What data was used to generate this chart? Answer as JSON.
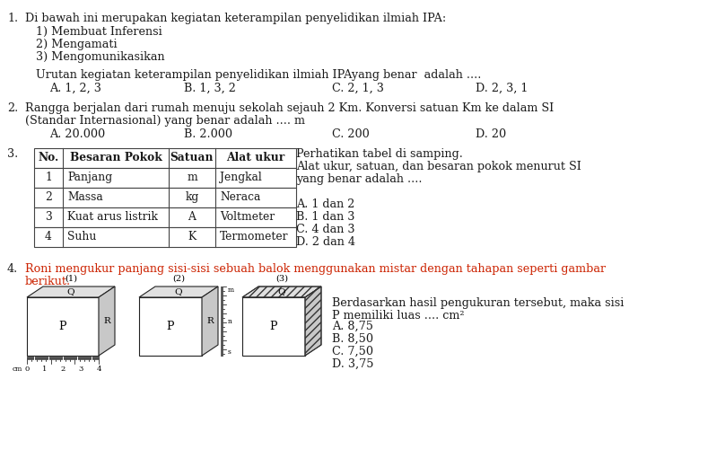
{
  "bg_color": "#ffffff",
  "text_color": "#1a1a1a",
  "red_color": "#cc2200",
  "fig_width": 8.08,
  "fig_height": 5.3,
  "dpi": 100,
  "content": {
    "q1_num": "1.",
    "q1_text": "Di bawah ini merupakan kegiatan keterampilan penyelidikan ilmiah IPA:",
    "q1_items": [
      "1) Membuat Inferensi",
      "2) Mengamati",
      "3) Mengomunikasikan"
    ],
    "q1_urutan": "Urutan kegiatan keterampilan penyelidikan ilmiah IPAyang benar  adalah ....",
    "q1_opts": [
      "A. 1, 2, 3",
      "B. 1, 3, 2",
      "C. 2, 1, 3",
      "D. 2, 3, 1"
    ],
    "q2_num": "2.",
    "q2_text": "Rangga berjalan dari rumah menuju sekolah sejauh 2 Km. Konversi satuan Km ke dalam SI",
    "q2_text2": "(Standar Internasional) yang benar adalah .... m",
    "q2_opts": [
      "A. 20.000",
      "B. 2.000",
      "C. 200",
      "D. 20"
    ],
    "q3_num": "3.",
    "q3_side_text": [
      "Perhatikan tabel di samping.",
      "Alat ukur, satuan, dan besaran pokok menurut SI",
      "yang benar adalah ....",
      "A. 1 dan 2",
      "B. 1 dan 3",
      "C. 4 dan 3",
      "D. 2 dan 4"
    ],
    "q3_table_headers": [
      "No.",
      "Besaran Pokok",
      "Satuan",
      "Alat ukur"
    ],
    "q3_table_rows": [
      [
        "1",
        "Panjang",
        "m",
        "Jengkal"
      ],
      [
        "2",
        "Massa",
        "kg",
        "Neraca"
      ],
      [
        "3",
        "Kuat arus listrik",
        "A",
        "Voltmeter"
      ],
      [
        "4",
        "Suhu",
        "K",
        "Termometer"
      ]
    ],
    "q4_num": "4.",
    "q4_text": "Roni mengukur panjang sisi-sisi sebuah balok menggunakan mistar dengan tahapan seperti gambar",
    "q4_text2": "berikut.",
    "q4_side_text": [
      "Berdasarkan hasil pengukuran tersebut, maka sisi",
      "P memiliki luas .... cm²",
      "A. 8,75",
      "B. 8,50",
      "C. 7,50",
      "D. 3,75"
    ]
  }
}
